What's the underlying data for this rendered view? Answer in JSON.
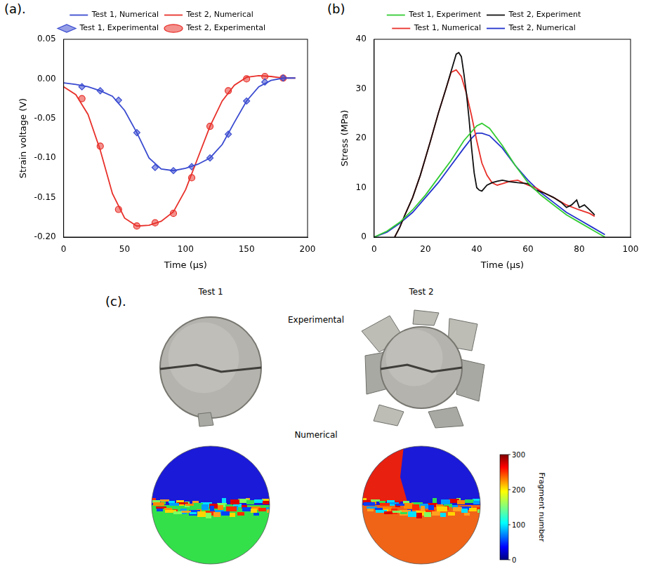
{
  "chart_data": [
    {
      "type": "line",
      "label": "(a).",
      "x_label": "Time (µs)",
      "y_label": "Strain voltage (V)",
      "xlim": [
        0,
        200
      ],
      "xticks": [
        0,
        50,
        100,
        150,
        200
      ],
      "ylim": [
        -0.2,
        0.05
      ],
      "yticks": [
        {
          "value": -0.2,
          "label": "-0.20"
        },
        {
          "value": -0.15,
          "label": "-0.15"
        },
        {
          "value": -0.1,
          "label": "-0.10"
        },
        {
          "value": -0.05,
          "label": "-0.05"
        },
        {
          "value": 0,
          "label": "0.00"
        },
        {
          "value": 0.05,
          "label": "0.05"
        }
      ],
      "grid": false,
      "legend": "top",
      "series": [
        {
          "name": "Test 1, Numerical",
          "type": "line",
          "line_style": "solid",
          "color": "#3a4bd0",
          "x": [
            0,
            10,
            20,
            30,
            40,
            50,
            60,
            70,
            80,
            90,
            100,
            110,
            120,
            130,
            140,
            150,
            160,
            170,
            180,
            190
          ],
          "values": [
            -0.005,
            -0.007,
            -0.01,
            -0.015,
            -0.022,
            -0.04,
            -0.068,
            -0.1,
            -0.114,
            -0.116,
            -0.113,
            -0.108,
            -0.1,
            -0.083,
            -0.055,
            -0.028,
            -0.01,
            -0.002,
            0.001,
            0.001
          ]
        },
        {
          "name": "Test 2, Numerical",
          "type": "line",
          "line_style": "solid",
          "color": "#e8302a",
          "x": [
            0,
            10,
            20,
            30,
            40,
            50,
            60,
            70,
            80,
            90,
            100,
            110,
            120,
            130,
            140,
            150,
            160,
            170,
            180,
            190
          ],
          "values": [
            -0.01,
            -0.02,
            -0.045,
            -0.09,
            -0.145,
            -0.176,
            -0.186,
            -0.185,
            -0.18,
            -0.168,
            -0.14,
            -0.1,
            -0.06,
            -0.028,
            -0.008,
            0.002,
            0.004,
            0.003,
            0.001,
            0.001
          ]
        },
        {
          "name": "Test 1, Experimental",
          "type": "scatter",
          "marker": "diamond",
          "color": "#3a4bd0",
          "x": [
            15,
            30,
            45,
            60,
            75,
            90,
            105,
            120,
            135,
            150,
            165,
            180
          ],
          "values": [
            -0.01,
            -0.015,
            -0.027,
            -0.068,
            -0.112,
            -0.116,
            -0.111,
            -0.1,
            -0.07,
            -0.028,
            -0.004,
            0.001
          ]
        },
        {
          "name": "Test 2, Experimental",
          "type": "scatter",
          "marker": "circle",
          "color": "#e8302a",
          "x": [
            15,
            30,
            45,
            60,
            75,
            90,
            105,
            120,
            135,
            150,
            165,
            180
          ],
          "values": [
            -0.025,
            -0.085,
            -0.165,
            -0.186,
            -0.182,
            -0.17,
            -0.125,
            -0.06,
            -0.015,
            0,
            0.003,
            0.001
          ]
        }
      ]
    },
    {
      "type": "line",
      "label": "(b)",
      "x_label": "Time (µs)",
      "y_label": "Stress (MPa)",
      "xlim": [
        0,
        100
      ],
      "xticks": [
        0,
        20,
        40,
        60,
        80,
        100
      ],
      "ylim": [
        0,
        40
      ],
      "yticks": [
        0,
        10,
        20,
        30,
        40
      ],
      "grid": false,
      "legend": "top",
      "series": [
        {
          "name": "Test 1, Experiment",
          "line_style": "solid",
          "color": "#33cc33",
          "x": [
            0,
            5,
            10,
            15,
            20,
            25,
            30,
            35,
            40,
            42,
            45,
            50,
            55,
            60,
            65,
            70,
            75,
            80,
            85,
            90
          ],
          "values": [
            0,
            1.2,
            3,
            5.5,
            8.5,
            12,
            15.5,
            19.5,
            22.5,
            23,
            22,
            18.5,
            14.5,
            11,
            8.5,
            6.5,
            4.5,
            3,
            1.5,
            0
          ]
        },
        {
          "name": "Test 2, Experiment",
          "line_style": "solid",
          "color": "#111111",
          "x": [
            8,
            10,
            12,
            15,
            18,
            20,
            22,
            25,
            28,
            30,
            32,
            33,
            34,
            35,
            36,
            37,
            38,
            39,
            40,
            41,
            42,
            44,
            46,
            48,
            50,
            53,
            56,
            60,
            63,
            66,
            70,
            73,
            75,
            77,
            79,
            80,
            82,
            84,
            86
          ],
          "values": [
            0,
            2,
            4.5,
            8,
            12.5,
            16,
            19.5,
            25,
            30,
            33.5,
            37,
            37.3,
            36.5,
            33,
            29,
            24,
            18,
            13,
            10,
            9.5,
            9.3,
            10.5,
            11,
            11.3,
            11.5,
            11.2,
            11,
            10.8,
            9.5,
            9,
            8,
            7,
            6,
            6.5,
            7.5,
            6,
            6.5,
            5.5,
            4.5
          ]
        },
        {
          "name": "Test 1, Numerical",
          "line_style": "solid",
          "color": "#e8302a",
          "x": [
            8,
            10,
            12,
            15,
            18,
            20,
            22,
            25,
            28,
            30,
            32,
            34,
            36,
            38,
            40,
            42,
            44,
            46,
            48,
            50,
            53,
            56,
            60,
            63,
            66,
            70,
            75,
            80,
            84,
            86
          ],
          "values": [
            0,
            2,
            4.5,
            8,
            12.5,
            16,
            19.5,
            25,
            30,
            33.3,
            33.8,
            32.5,
            29,
            24.5,
            19.5,
            15,
            12.5,
            11,
            10.5,
            10.8,
            11.3,
            11.5,
            10.5,
            10,
            9,
            8,
            6.5,
            5.5,
            4.8,
            4.2
          ]
        },
        {
          "name": "Test 2, Numerical",
          "line_style": "solid",
          "color": "#2233cc",
          "x": [
            0,
            5,
            10,
            15,
            20,
            25,
            30,
            35,
            38,
            40,
            42,
            45,
            50,
            55,
            60,
            65,
            70,
            75,
            80,
            85,
            90
          ],
          "values": [
            0,
            1,
            2.8,
            5,
            8,
            11,
            14.5,
            18,
            20,
            21,
            21,
            20.5,
            18,
            14.5,
            11.5,
            9,
            7,
            5,
            3.5,
            2,
            0.5
          ]
        }
      ]
    }
  ],
  "panel_c": {
    "label": "(c).",
    "columns": [
      "Test 1",
      "Test 2"
    ],
    "rows": [
      "Experimental",
      "Numerical"
    ],
    "colorbar": {
      "title": "Fragment number",
      "range": [
        0,
        300
      ],
      "ticks": [
        0,
        100,
        200,
        300
      ]
    }
  }
}
